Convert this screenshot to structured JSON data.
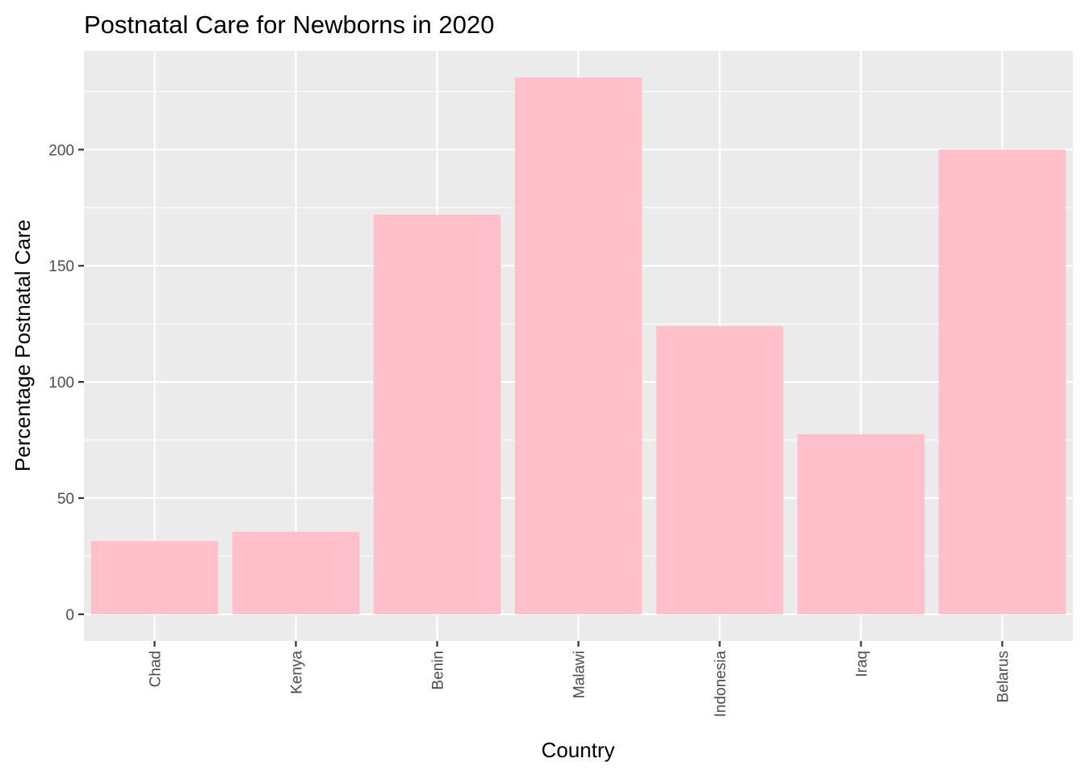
{
  "chart_data": {
    "type": "bar",
    "title": "Postnatal Care for Newborns in 2020",
    "xlabel": "Country",
    "ylabel": "Percentage Postnatal Care",
    "categories": [
      "Chad",
      "Kenya",
      "Benin",
      "Malawi",
      "Indonesia",
      "Iraq",
      "Belarus"
    ],
    "values": [
      31.5,
      35.5,
      172,
      231,
      124,
      77.5,
      200
    ],
    "ylim": [
      -11.5,
      242.5
    ],
    "yticks": [
      0,
      50,
      100,
      150,
      200
    ],
    "ytick_labels": [
      "0",
      "50",
      "100",
      "150",
      "200"
    ],
    "grid": true,
    "legend": "none",
    "colors": {
      "bar": "#ffc0cb",
      "panel_background": "#ebebeb",
      "grid": "#ffffff",
      "tick_text": "#4d4d4d",
      "tick_mark": "#333333"
    }
  }
}
